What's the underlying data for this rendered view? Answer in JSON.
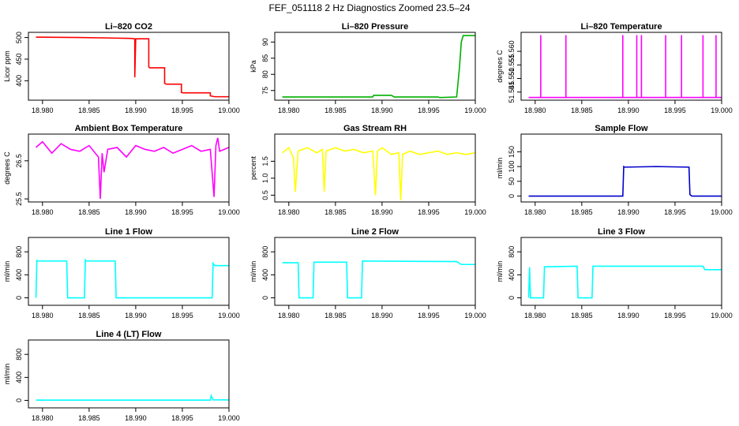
{
  "figure": {
    "title": "FEF_051118  2 Hz Diagnostics Zoomed 23.5–24"
  },
  "chart_data": [
    {
      "id": "co2",
      "type": "line",
      "title": "Li–820 CO2",
      "ylabel": "Licor ppm",
      "color": "#ff0000",
      "xlim": [
        18.979,
        19.0
      ],
      "ylim": [
        355,
        512
      ],
      "xticks": [
        18.98,
        18.985,
        18.99,
        18.995,
        19.0
      ],
      "xtick_labels": [
        "18.980",
        "18.985",
        "18.990",
        "18.995",
        "19.000"
      ],
      "yticks": [
        400,
        450,
        500
      ],
      "ytick_labels": [
        "400",
        "450",
        "500"
      ],
      "series": [
        {
          "x": [
            18.9793,
            18.984,
            18.987,
            18.9895,
            18.9899,
            18.9899,
            18.99,
            18.99,
            18.9914,
            18.9914,
            18.9915,
            18.9931,
            18.9931,
            18.9933,
            18.9949,
            18.9949,
            18.9951,
            18.998,
            18.998,
            18.9985,
            19.0
          ],
          "y": [
            501,
            500,
            499,
            498,
            497,
            408,
            497,
            497,
            497,
            432,
            430,
            430,
            394,
            392,
            392,
            373,
            372,
            372,
            365,
            363,
            363
          ]
        }
      ]
    },
    {
      "id": "pressure",
      "type": "line",
      "title": "Li–820 Pressure",
      "ylabel": "kPa",
      "color": "#00b000",
      "xlim": [
        18.979,
        19.0
      ],
      "ylim": [
        72,
        93
      ],
      "xticks": [
        18.98,
        18.985,
        18.99,
        18.995,
        19.0
      ],
      "xtick_labels": [
        "18.980",
        "18.985",
        "18.990",
        "18.995",
        "19.000"
      ],
      "yticks": [
        75,
        80,
        85,
        90
      ],
      "ytick_labels": [
        "75",
        "80",
        "85",
        "90"
      ],
      "series": [
        {
          "x": [
            18.9793,
            18.989,
            18.9891,
            18.991,
            18.9913,
            18.996,
            18.9962,
            18.998,
            18.9983,
            18.9985,
            18.9987,
            19.0
          ],
          "y": [
            73.0,
            73.0,
            73.5,
            73.5,
            73.0,
            73.0,
            72.8,
            73.0,
            82,
            90,
            92,
            92
          ]
        }
      ]
    },
    {
      "id": "licor-temp",
      "type": "line",
      "title": "Li–820 Temperature",
      "ylabel": "degrees C",
      "color": "#ff00ff",
      "xlim": [
        18.979,
        19.0
      ],
      "ylim": [
        51.542,
        51.567
      ],
      "xticks": [
        18.98,
        18.985,
        18.99,
        18.995,
        19.0
      ],
      "xtick_labels": [
        "18.980",
        "18.985",
        "18.990",
        "18.995",
        "19.000"
      ],
      "yticks": [
        51.545,
        51.55,
        51.555,
        51.56
      ],
      "ytick_labels": [
        "51.545",
        "51.550",
        "51.555",
        "51.560"
      ],
      "series": [
        {
          "x": [
            18.9793,
            18.9806,
            18.9806,
            18.9806,
            18.9833,
            18.9833,
            18.9833,
            18.9894,
            18.9894,
            18.9894,
            18.9909,
            18.9909,
            18.9909,
            18.9914,
            18.9914,
            18.9914,
            18.994,
            18.994,
            18.994,
            18.9957,
            18.9957,
            18.9957,
            18.998,
            18.998,
            18.998,
            18.9994,
            18.9994,
            18.9994,
            19.0
          ],
          "y": [
            51.543,
            51.543,
            51.566,
            51.543,
            51.543,
            51.566,
            51.543,
            51.543,
            51.566,
            51.543,
            51.543,
            51.566,
            51.543,
            51.543,
            51.566,
            51.543,
            51.543,
            51.566,
            51.543,
            51.543,
            51.566,
            51.543,
            51.543,
            51.566,
            51.543,
            51.543,
            51.566,
            51.543,
            51.543
          ]
        }
      ]
    },
    {
      "id": "ambient-temp",
      "type": "line",
      "title": "Ambient Box Temperature",
      "ylabel": "degrees C",
      "color": "#ff00ff",
      "xlim": [
        18.979,
        19.0
      ],
      "ylim": [
        25.42,
        27.2
      ],
      "xticks": [
        18.98,
        18.985,
        18.99,
        18.995,
        19.0
      ],
      "xtick_labels": [
        "18.980",
        "18.985",
        "18.990",
        "18.995",
        "19.000"
      ],
      "yticks": [
        25.5,
        26.5
      ],
      "ytick_labels": [
        "25.5",
        "26.5"
      ],
      "series": [
        {
          "x": [
            18.9793,
            18.98,
            18.981,
            18.982,
            18.983,
            18.984,
            18.985,
            18.986,
            18.9862,
            18.9864,
            18.9866,
            18.987,
            18.988,
            18.989,
            18.99,
            18.991,
            18.992,
            18.993,
            18.994,
            18.995,
            18.996,
            18.997,
            18.998,
            18.9984,
            18.9986,
            18.9988,
            18.999,
            19.0
          ],
          "y": [
            26.85,
            27.0,
            26.7,
            26.95,
            26.8,
            26.75,
            26.9,
            26.6,
            25.5,
            26.7,
            26.2,
            26.8,
            26.85,
            26.6,
            26.9,
            26.8,
            26.75,
            26.85,
            26.7,
            26.8,
            26.9,
            26.75,
            26.8,
            25.55,
            26.9,
            27.1,
            26.75,
            26.85
          ]
        }
      ]
    },
    {
      "id": "rh",
      "type": "line",
      "title": "Gas Stream RH",
      "ylabel": "percent",
      "color": "#ffff00",
      "xlim": [
        18.979,
        19.0
      ],
      "ylim": [
        0.3,
        2.3
      ],
      "xticks": [
        18.98,
        18.985,
        18.99,
        18.995,
        19.0
      ],
      "xtick_labels": [
        "18.980",
        "18.985",
        "18.990",
        "18.995",
        "19.000"
      ],
      "yticks": [
        0.5,
        1.0,
        1.5
      ],
      "ytick_labels": [
        "0.5",
        "1.0",
        "1.5"
      ],
      "series": [
        {
          "x": [
            18.9793,
            18.98,
            18.9805,
            18.9807,
            18.981,
            18.982,
            18.983,
            18.9836,
            18.9838,
            18.984,
            18.985,
            18.986,
            18.987,
            18.988,
            18.989,
            18.9893,
            18.9895,
            18.99,
            18.991,
            18.9918,
            18.992,
            18.9922,
            18.993,
            18.994,
            18.995,
            18.996,
            18.997,
            18.998,
            18.999,
            19.0
          ],
          "y": [
            1.75,
            1.9,
            1.6,
            0.6,
            1.8,
            1.9,
            1.75,
            1.85,
            0.6,
            1.8,
            1.9,
            1.8,
            1.85,
            1.75,
            1.8,
            0.5,
            1.8,
            1.9,
            1.7,
            1.75,
            0.35,
            1.7,
            1.8,
            1.7,
            1.75,
            1.8,
            1.7,
            1.75,
            1.7,
            1.75
          ]
        }
      ]
    },
    {
      "id": "sample-flow",
      "type": "line",
      "title": "Sample Flow",
      "ylabel": "ml/min",
      "color": "#0000cc",
      "xlim": [
        18.979,
        19.0
      ],
      "ylim": [
        -20,
        210
      ],
      "xticks": [
        18.98,
        18.985,
        18.99,
        18.995,
        19.0
      ],
      "xtick_labels": [
        "18.980",
        "18.985",
        "18.990",
        "18.995",
        "19.000"
      ],
      "yticks": [
        0,
        50,
        100,
        150
      ],
      "ytick_labels": [
        "0",
        "50",
        "100",
        "150"
      ],
      "series": [
        {
          "x": [
            18.9793,
            18.9894,
            18.9895,
            18.9896,
            18.993,
            18.9965,
            18.9966,
            18.9968,
            19.0
          ],
          "y": [
            0,
            0,
            100,
            98,
            100,
            98,
            5,
            0,
            0
          ]
        }
      ]
    },
    {
      "id": "line1-flow",
      "type": "line",
      "title": "Line 1 Flow",
      "ylabel": "ml/min",
      "color": "#00ffff",
      "xlim": [
        18.979,
        19.0
      ],
      "ylim": [
        -130,
        1050
      ],
      "xticks": [
        18.98,
        18.985,
        18.99,
        18.995,
        19.0
      ],
      "xtick_labels": [
        "18.980",
        "18.985",
        "18.990",
        "18.995",
        "19.000"
      ],
      "yticks": [
        0,
        400,
        800
      ],
      "ytick_labels": [
        "0",
        "400",
        "800"
      ],
      "series": [
        {
          "x": [
            18.9793,
            18.9794,
            18.9795,
            18.9826,
            18.9827,
            18.9845,
            18.9846,
            18.9847,
            18.9878,
            18.9879,
            18.99,
            18.9982,
            18.9983,
            18.9985,
            19.0
          ],
          "y": [
            0,
            650,
            640,
            640,
            0,
            0,
            660,
            640,
            640,
            0,
            0,
            0,
            600,
            560,
            560
          ]
        }
      ]
    },
    {
      "id": "line2-flow",
      "type": "line",
      "title": "Line 2 Flow",
      "ylabel": "ml/min",
      "color": "#00ffff",
      "xlim": [
        18.979,
        19.0
      ],
      "ylim": [
        -130,
        1050
      ],
      "xticks": [
        18.98,
        18.985,
        18.99,
        18.995,
        19.0
      ],
      "xtick_labels": [
        "18.980",
        "18.985",
        "18.990",
        "18.995",
        "19.000"
      ],
      "yticks": [
        0,
        400,
        800
      ],
      "ytick_labels": [
        "0",
        "400",
        "800"
      ],
      "series": [
        {
          "x": [
            18.9793,
            18.981,
            18.9811,
            18.9826,
            18.9827,
            18.9862,
            18.9863,
            18.9878,
            18.9879,
            18.998,
            18.9985,
            19.0
          ],
          "y": [
            610,
            610,
            0,
            0,
            620,
            620,
            0,
            0,
            640,
            630,
            580,
            580
          ]
        }
      ]
    },
    {
      "id": "line3-flow",
      "type": "line",
      "title": "Line 3 Flow",
      "ylabel": "ml/min",
      "color": "#00ffff",
      "xlim": [
        18.979,
        19.0
      ],
      "ylim": [
        -130,
        1050
      ],
      "xticks": [
        18.98,
        18.985,
        18.99,
        18.995,
        19.0
      ],
      "xtick_labels": [
        "18.980",
        "18.985",
        "18.990",
        "18.995",
        "19.000"
      ],
      "yticks": [
        0,
        400,
        800
      ],
      "ytick_labels": [
        "0",
        "400",
        "800"
      ],
      "series": [
        {
          "x": [
            18.9793,
            18.9794,
            18.9795,
            18.9809,
            18.981,
            18.9845,
            18.9846,
            18.9861,
            18.9862,
            18.998,
            18.9982,
            19.0
          ],
          "y": [
            0,
            530,
            0,
            0,
            540,
            550,
            0,
            0,
            550,
            550,
            490,
            490
          ]
        }
      ]
    },
    {
      "id": "line4-flow",
      "type": "line",
      "title": "Line 4 (LT) Flow",
      "ylabel": "ml/min",
      "color": "#00ffff",
      "xlim": [
        18.979,
        19.0
      ],
      "ylim": [
        -130,
        1050
      ],
      "xticks": [
        18.98,
        18.985,
        18.99,
        18.995,
        19.0
      ],
      "xtick_labels": [
        "18.980",
        "18.985",
        "18.990",
        "18.995",
        "19.000"
      ],
      "yticks": [
        0,
        400,
        800
      ],
      "ytick_labels": [
        "0",
        "400",
        "800"
      ],
      "series": [
        {
          "x": [
            18.9793,
            18.998,
            18.9981,
            18.9983,
            19.0
          ],
          "y": [
            5,
            5,
            80,
            10,
            8
          ]
        }
      ]
    }
  ]
}
